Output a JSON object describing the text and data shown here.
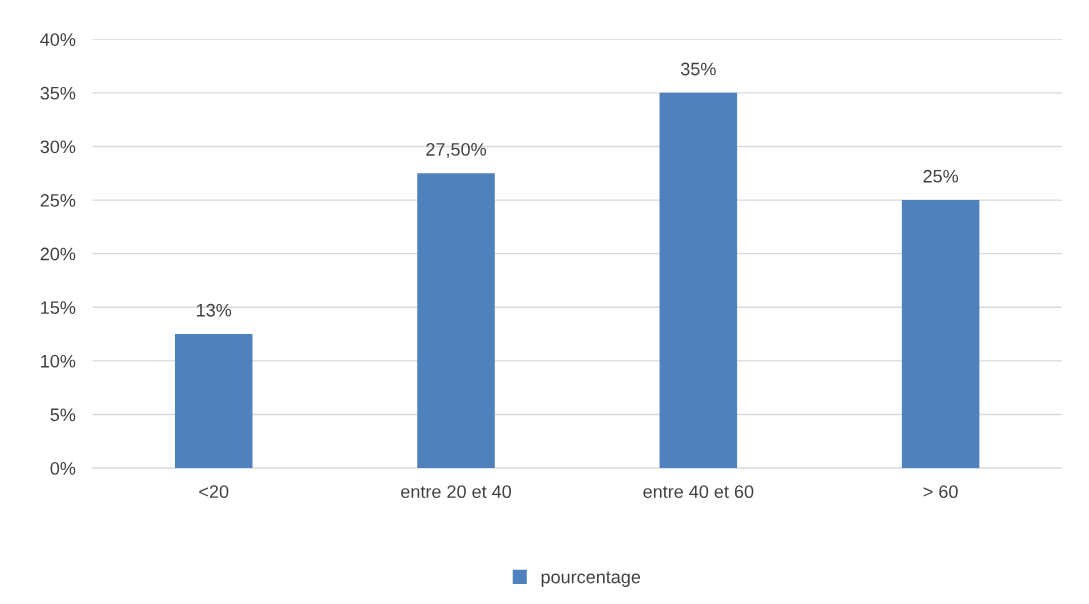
{
  "chart_data": {
    "type": "bar",
    "categories": [
      "<20",
      "entre 20 et 40",
      "entre 40 et 60",
      "> 60"
    ],
    "series": [
      {
        "name": "pourcentage",
        "color": "#4f81bd",
        "values": [
          12.5,
          27.5,
          35,
          25
        ],
        "value_labels": [
          "13%",
          "27,50%",
          "35%",
          "25%"
        ]
      }
    ],
    "ylim": [
      0,
      40
    ],
    "yticks": [
      {
        "value": 0,
        "label": "0%"
      },
      {
        "value": 5,
        "label": "5%"
      },
      {
        "value": 10,
        "label": "10%"
      },
      {
        "value": 15,
        "label": "15%"
      },
      {
        "value": 20,
        "label": "20%"
      },
      {
        "value": 25,
        "label": "25%"
      },
      {
        "value": 30,
        "label": "30%"
      },
      {
        "value": 35,
        "label": "35%"
      },
      {
        "value": 40,
        "label": "40%"
      }
    ],
    "grid": "y",
    "legend": "bottom"
  }
}
